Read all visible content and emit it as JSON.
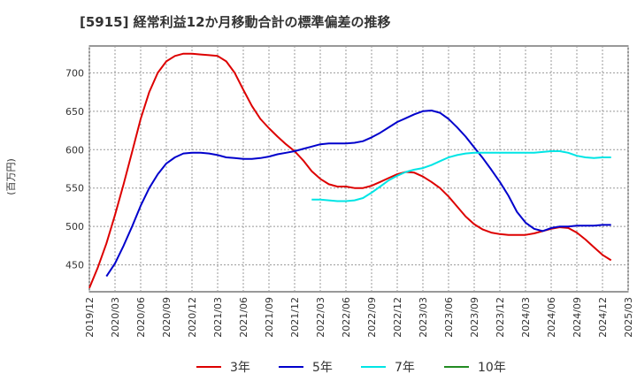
{
  "chart_data": {
    "type": "line",
    "title": "[5915]  経常利益12か月移動合計の標準偏差の推移",
    "ylabel": "(百万円)",
    "xlabel": "",
    "ylim": [
      415,
      735
    ],
    "yticks": [
      450,
      500,
      550,
      600,
      650,
      700
    ],
    "grid": true,
    "legend_position": "bottom-center",
    "x_ticks": [
      "2019/12",
      "2020/03",
      "2020/06",
      "2020/09",
      "2020/12",
      "2021/03",
      "2021/06",
      "2021/09",
      "2021/12",
      "2022/03",
      "2022/06",
      "2022/09",
      "2022/12",
      "2023/03",
      "2023/06",
      "2023/09",
      "2023/12",
      "2024/03",
      "2024/06",
      "2024/09",
      "2024/12",
      "2025/03"
    ],
    "series": [
      {
        "name": "3年",
        "color": "#dd0000",
        "points": [
          [
            "2019/12",
            420
          ],
          [
            "2020/01",
            447
          ],
          [
            "2020/02",
            478
          ],
          [
            "2020/03",
            515
          ],
          [
            "2020/04",
            555
          ],
          [
            "2020/05",
            597
          ],
          [
            "2020/06",
            640
          ],
          [
            "2020/07",
            675
          ],
          [
            "2020/08",
            700
          ],
          [
            "2020/09",
            715
          ],
          [
            "2020/10",
            722
          ],
          [
            "2020/11",
            725
          ],
          [
            "2020/12",
            725
          ],
          [
            "2021/01",
            724
          ],
          [
            "2021/02",
            723
          ],
          [
            "2021/03",
            722
          ],
          [
            "2021/04",
            715
          ],
          [
            "2021/05",
            700
          ],
          [
            "2021/06",
            678
          ],
          [
            "2021/07",
            657
          ],
          [
            "2021/08",
            640
          ],
          [
            "2021/09",
            628
          ],
          [
            "2021/10",
            617
          ],
          [
            "2021/11",
            607
          ],
          [
            "2021/12",
            598
          ],
          [
            "2022/01",
            586
          ],
          [
            "2022/02",
            572
          ],
          [
            "2022/03",
            562
          ],
          [
            "2022/04",
            555
          ],
          [
            "2022/05",
            552
          ],
          [
            "2022/06",
            552
          ],
          [
            "2022/07",
            550
          ],
          [
            "2022/08",
            550
          ],
          [
            "2022/09",
            553
          ],
          [
            "2022/10",
            558
          ],
          [
            "2022/11",
            563
          ],
          [
            "2022/12",
            568
          ],
          [
            "2023/01",
            571
          ],
          [
            "2023/02",
            570
          ],
          [
            "2023/03",
            565
          ],
          [
            "2023/04",
            558
          ],
          [
            "2023/05",
            550
          ],
          [
            "2023/06",
            539
          ],
          [
            "2023/07",
            526
          ],
          [
            "2023/08",
            513
          ],
          [
            "2023/09",
            503
          ],
          [
            "2023/10",
            496
          ],
          [
            "2023/11",
            492
          ],
          [
            "2023/12",
            490
          ],
          [
            "2024/01",
            489
          ],
          [
            "2024/02",
            489
          ],
          [
            "2024/03",
            489
          ],
          [
            "2024/04",
            491
          ],
          [
            "2024/05",
            494
          ],
          [
            "2024/06",
            497
          ],
          [
            "2024/07",
            499
          ],
          [
            "2024/08",
            498
          ],
          [
            "2024/09",
            492
          ],
          [
            "2024/10",
            483
          ],
          [
            "2024/11",
            473
          ],
          [
            "2024/12",
            463
          ],
          [
            "2025/01",
            456
          ]
        ]
      },
      {
        "name": "5年",
        "color": "#0000cc",
        "points": [
          [
            "2020/02",
            435
          ],
          [
            "2020/03",
            452
          ],
          [
            "2020/04",
            475
          ],
          [
            "2020/05",
            500
          ],
          [
            "2020/06",
            527
          ],
          [
            "2020/07",
            550
          ],
          [
            "2020/08",
            568
          ],
          [
            "2020/09",
            582
          ],
          [
            "2020/10",
            590
          ],
          [
            "2020/11",
            595
          ],
          [
            "2020/12",
            596
          ],
          [
            "2021/01",
            596
          ],
          [
            "2021/02",
            595
          ],
          [
            "2021/03",
            593
          ],
          [
            "2021/04",
            590
          ],
          [
            "2021/05",
            589
          ],
          [
            "2021/06",
            588
          ],
          [
            "2021/07",
            588
          ],
          [
            "2021/08",
            589
          ],
          [
            "2021/09",
            591
          ],
          [
            "2021/10",
            594
          ],
          [
            "2021/11",
            596
          ],
          [
            "2021/12",
            598
          ],
          [
            "2022/01",
            601
          ],
          [
            "2022/02",
            604
          ],
          [
            "2022/03",
            607
          ],
          [
            "2022/04",
            608
          ],
          [
            "2022/05",
            608
          ],
          [
            "2022/06",
            608
          ],
          [
            "2022/07",
            609
          ],
          [
            "2022/08",
            611
          ],
          [
            "2022/09",
            616
          ],
          [
            "2022/10",
            622
          ],
          [
            "2022/11",
            629
          ],
          [
            "2022/12",
            636
          ],
          [
            "2023/01",
            641
          ],
          [
            "2023/02",
            646
          ],
          [
            "2023/03",
            650
          ],
          [
            "2023/04",
            651
          ],
          [
            "2023/05",
            648
          ],
          [
            "2023/06",
            640
          ],
          [
            "2023/07",
            629
          ],
          [
            "2023/08",
            617
          ],
          [
            "2023/09",
            603
          ],
          [
            "2023/10",
            589
          ],
          [
            "2023/11",
            574
          ],
          [
            "2023/12",
            558
          ],
          [
            "2024/01",
            540
          ],
          [
            "2024/02",
            519
          ],
          [
            "2024/03",
            505
          ],
          [
            "2024/04",
            497
          ],
          [
            "2024/05",
            494
          ],
          [
            "2024/06",
            498
          ],
          [
            "2024/07",
            500
          ],
          [
            "2024/08",
            500
          ],
          [
            "2024/09",
            501
          ],
          [
            "2024/10",
            501
          ],
          [
            "2024/11",
            501
          ],
          [
            "2024/12",
            502
          ],
          [
            "2025/01",
            502
          ]
        ]
      },
      {
        "name": "7年",
        "color": "#00e5e5",
        "points": [
          [
            "2022/02",
            535
          ],
          [
            "2022/03",
            535
          ],
          [
            "2022/04",
            534
          ],
          [
            "2022/05",
            533
          ],
          [
            "2022/06",
            533
          ],
          [
            "2022/07",
            534
          ],
          [
            "2022/08",
            537
          ],
          [
            "2022/09",
            544
          ],
          [
            "2022/10",
            552
          ],
          [
            "2022/11",
            560
          ],
          [
            "2022/12",
            566
          ],
          [
            "2023/01",
            571
          ],
          [
            "2023/02",
            574
          ],
          [
            "2023/03",
            576
          ],
          [
            "2023/04",
            580
          ],
          [
            "2023/05",
            585
          ],
          [
            "2023/06",
            590
          ],
          [
            "2023/07",
            593
          ],
          [
            "2023/08",
            595
          ],
          [
            "2023/09",
            596
          ],
          [
            "2023/10",
            596
          ],
          [
            "2023/11",
            596
          ],
          [
            "2023/12",
            596
          ],
          [
            "2024/01",
            596
          ],
          [
            "2024/02",
            596
          ],
          [
            "2024/03",
            596
          ],
          [
            "2024/04",
            596
          ],
          [
            "2024/05",
            597
          ],
          [
            "2024/06",
            598
          ],
          [
            "2024/07",
            598
          ],
          [
            "2024/08",
            596
          ],
          [
            "2024/09",
            592
          ],
          [
            "2024/10",
            590
          ],
          [
            "2024/11",
            589
          ],
          [
            "2024/12",
            590
          ],
          [
            "2025/01",
            590
          ]
        ]
      },
      {
        "name": "10年",
        "color": "#228b22",
        "points": []
      }
    ]
  }
}
